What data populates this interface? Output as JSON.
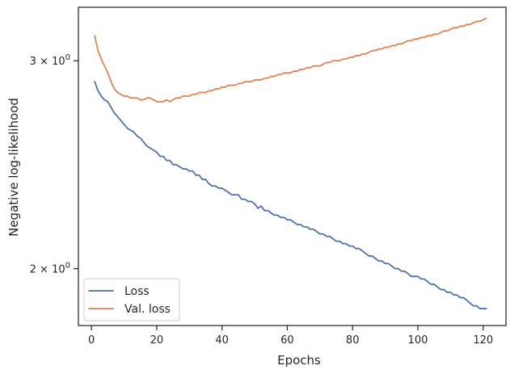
{
  "chart_data": {
    "type": "line",
    "title": "",
    "xlabel": "Epochs",
    "ylabel": "Negative log-likelihood",
    "yscale": "log",
    "xlim": [
      -4,
      127
    ],
    "ylim": [
      1.79,
      3.33
    ],
    "x_ticks": [
      0,
      20,
      40,
      60,
      80,
      100,
      120
    ],
    "x_tick_labels": [
      "0",
      "20",
      "40",
      "60",
      "80",
      "100",
      "120"
    ],
    "y_ticks": [
      2,
      3
    ],
    "y_tick_labels": [
      {
        "base": "2",
        "exp": "0"
      },
      {
        "base": "3",
        "exp": "0"
      }
    ],
    "grid": false,
    "legend_position": "lower left",
    "x": [
      1,
      2,
      3,
      4,
      5,
      6,
      7,
      8,
      9,
      10,
      11,
      12,
      13,
      14,
      15,
      16,
      17,
      18,
      19,
      20,
      21,
      22,
      23,
      24,
      25,
      26,
      27,
      28,
      29,
      30,
      31,
      32,
      33,
      34,
      35,
      36,
      37,
      38,
      39,
      40,
      41,
      42,
      43,
      44,
      45,
      46,
      47,
      48,
      49,
      50,
      51,
      52,
      53,
      54,
      55,
      56,
      57,
      58,
      59,
      60,
      61,
      62,
      63,
      64,
      65,
      66,
      67,
      68,
      69,
      70,
      71,
      72,
      73,
      74,
      75,
      76,
      77,
      78,
      79,
      80,
      81,
      82,
      83,
      84,
      85,
      86,
      87,
      88,
      89,
      90,
      91,
      92,
      93,
      94,
      95,
      96,
      97,
      98,
      99,
      100,
      101,
      102,
      103,
      104,
      105,
      106,
      107,
      108,
      109,
      110,
      111,
      112,
      113,
      114,
      115,
      116,
      117,
      118,
      119,
      120,
      121
    ],
    "series": [
      {
        "name": "Loss",
        "color": "#4c72b0",
        "values": [
          2.88,
          2.83,
          2.8,
          2.78,
          2.77,
          2.74,
          2.71,
          2.69,
          2.67,
          2.65,
          2.63,
          2.62,
          2.61,
          2.59,
          2.58,
          2.56,
          2.54,
          2.53,
          2.52,
          2.51,
          2.49,
          2.49,
          2.47,
          2.47,
          2.45,
          2.45,
          2.44,
          2.43,
          2.43,
          2.42,
          2.42,
          2.4,
          2.4,
          2.38,
          2.38,
          2.36,
          2.35,
          2.35,
          2.34,
          2.34,
          2.33,
          2.32,
          2.31,
          2.31,
          2.31,
          2.29,
          2.29,
          2.28,
          2.28,
          2.27,
          2.25,
          2.26,
          2.24,
          2.24,
          2.23,
          2.22,
          2.22,
          2.21,
          2.21,
          2.2,
          2.2,
          2.19,
          2.18,
          2.18,
          2.17,
          2.17,
          2.16,
          2.16,
          2.15,
          2.14,
          2.14,
          2.13,
          2.13,
          2.12,
          2.11,
          2.11,
          2.1,
          2.1,
          2.09,
          2.09,
          2.08,
          2.08,
          2.07,
          2.06,
          2.05,
          2.05,
          2.04,
          2.03,
          2.03,
          2.02,
          2.02,
          2.01,
          2.0,
          2.0,
          1.99,
          1.99,
          1.98,
          1.97,
          1.97,
          1.97,
          1.96,
          1.96,
          1.95,
          1.94,
          1.94,
          1.93,
          1.92,
          1.92,
          1.91,
          1.91,
          1.9,
          1.9,
          1.89,
          1.89,
          1.88,
          1.87,
          1.86,
          1.86,
          1.85,
          1.85,
          1.85
        ]
      },
      {
        "name": "Val. loss",
        "color": "#dd8452",
        "values": [
          3.15,
          3.06,
          3.01,
          2.97,
          2.93,
          2.88,
          2.84,
          2.82,
          2.81,
          2.8,
          2.8,
          2.79,
          2.79,
          2.79,
          2.78,
          2.78,
          2.79,
          2.79,
          2.78,
          2.77,
          2.77,
          2.77,
          2.78,
          2.77,
          2.78,
          2.79,
          2.79,
          2.8,
          2.8,
          2.8,
          2.81,
          2.81,
          2.82,
          2.82,
          2.82,
          2.83,
          2.83,
          2.84,
          2.84,
          2.85,
          2.85,
          2.86,
          2.86,
          2.86,
          2.87,
          2.87,
          2.88,
          2.88,
          2.88,
          2.89,
          2.89,
          2.89,
          2.9,
          2.9,
          2.91,
          2.91,
          2.92,
          2.92,
          2.93,
          2.93,
          2.93,
          2.94,
          2.94,
          2.95,
          2.95,
          2.96,
          2.96,
          2.97,
          2.97,
          2.97,
          2.98,
          2.99,
          2.99,
          3.0,
          3.0,
          3.0,
          3.01,
          3.01,
          3.02,
          3.02,
          3.03,
          3.03,
          3.04,
          3.04,
          3.05,
          3.06,
          3.06,
          3.07,
          3.07,
          3.08,
          3.08,
          3.09,
          3.09,
          3.1,
          3.1,
          3.11,
          3.12,
          3.12,
          3.13,
          3.13,
          3.14,
          3.14,
          3.15,
          3.15,
          3.16,
          3.16,
          3.17,
          3.18,
          3.18,
          3.19,
          3.2,
          3.2,
          3.21,
          3.21,
          3.22,
          3.22,
          3.23,
          3.24,
          3.24,
          3.25,
          3.26
        ]
      }
    ]
  }
}
